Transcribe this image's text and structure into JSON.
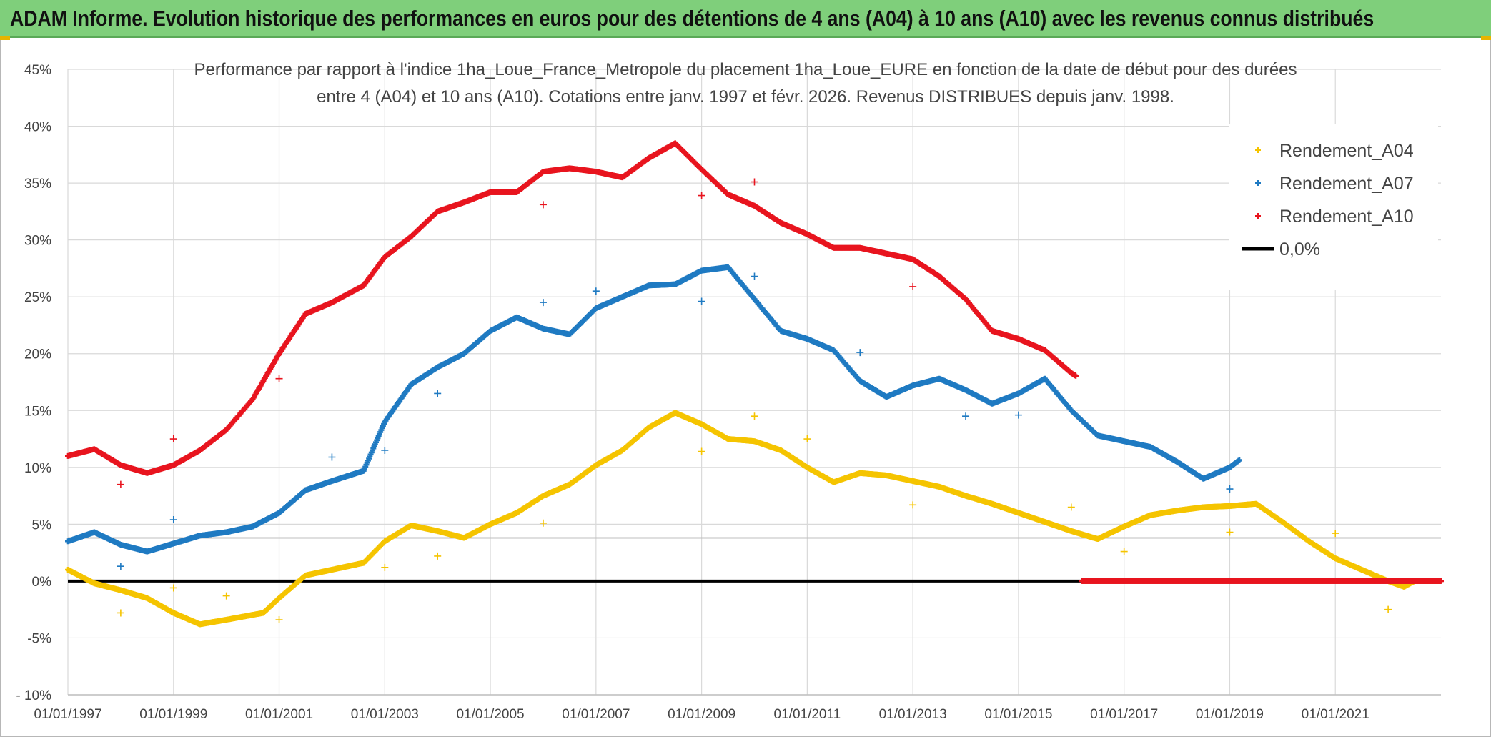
{
  "header": {
    "title": "ADAM Informe. Evolution historique des performances en euros pour des détentions de 4 ans (A04) à 10 ans (A10) avec les revenus connus distribués"
  },
  "chart_data": {
    "type": "scatter",
    "title_lines": [
      "Performance par rapport à l'indice 1ha_Loue_France_Metropole  du placement 1ha_Loue_EURE en fonction de la date de début pour des durées",
      "entre 4 (A04) et 10 ans (A10). Cotations entre janv. 1997 et févr. 2026. Revenus DISTRIBUES depuis janv. 1998."
    ],
    "xlabel": "",
    "ylabel": "",
    "xlim": [
      1997.0,
      2023.0
    ],
    "ylim": [
      -10,
      45
    ],
    "x_ticks": [
      1997,
      1999,
      2001,
      2003,
      2005,
      2007,
      2009,
      2011,
      2013,
      2015,
      2017,
      2019,
      2021
    ],
    "x_tick_labels": [
      "01/01/1997",
      "01/01/1999",
      "01/01/2001",
      "01/01/2003",
      "01/01/2005",
      "01/01/2007",
      "01/01/2009",
      "01/01/2011",
      "01/01/2013",
      "01/01/2015",
      "01/01/2017",
      "01/01/2019",
      "01/01/2021"
    ],
    "y_ticks": [
      -10,
      -5,
      0,
      5,
      10,
      15,
      20,
      25,
      30,
      35,
      40,
      45
    ],
    "y_tick_labels": [
      "- 10%",
      "-5%",
      "0%",
      "5%",
      "10%",
      "15%",
      "20%",
      "25%",
      "30%",
      "35%",
      "40%",
      "45%"
    ],
    "grid": true,
    "reference_line": {
      "y": 3.8
    },
    "legend_position": "top-right",
    "series": [
      {
        "name": "Rendement_A04",
        "color": "#f5c400",
        "marker": "plus",
        "points": [
          [
            1997.0,
            1.0
          ],
          [
            1997.5,
            -0.2
          ],
          [
            1998.0,
            -0.8
          ],
          [
            1998.5,
            -1.5
          ],
          [
            1999.0,
            -2.8
          ],
          [
            1999.5,
            -3.8
          ],
          [
            2000.0,
            -3.4
          ],
          [
            2000.7,
            -2.8
          ],
          [
            2001.0,
            -1.5
          ],
          [
            2001.5,
            0.5
          ],
          [
            2002.0,
            1.0
          ],
          [
            2002.6,
            1.6
          ],
          [
            2003.0,
            3.5
          ],
          [
            2003.5,
            4.9
          ],
          [
            2004.0,
            4.4
          ],
          [
            2004.5,
            3.8
          ],
          [
            2005.0,
            5.0
          ],
          [
            2005.5,
            6.0
          ],
          [
            2006.0,
            7.5
          ],
          [
            2006.5,
            8.5
          ],
          [
            2007.0,
            10.2
          ],
          [
            2007.5,
            11.5
          ],
          [
            2008.0,
            13.5
          ],
          [
            2008.5,
            14.8
          ],
          [
            2009.0,
            13.8
          ],
          [
            2009.5,
            12.5
          ],
          [
            2010.0,
            12.3
          ],
          [
            2010.5,
            11.5
          ],
          [
            2011.0,
            10.0
          ],
          [
            2011.5,
            8.7
          ],
          [
            2012.0,
            9.5
          ],
          [
            2012.5,
            9.3
          ],
          [
            2013.0,
            8.8
          ],
          [
            2013.5,
            8.3
          ],
          [
            2014.0,
            7.5
          ],
          [
            2014.5,
            6.8
          ],
          [
            2015.0,
            6.0
          ],
          [
            2015.5,
            5.2
          ],
          [
            2016.0,
            4.4
          ],
          [
            2016.5,
            3.7
          ],
          [
            2017.0,
            4.8
          ],
          [
            2017.5,
            5.8
          ],
          [
            2018.0,
            6.2
          ],
          [
            2018.5,
            6.5
          ],
          [
            2019.0,
            6.6
          ],
          [
            2019.5,
            6.8
          ],
          [
            2020.0,
            5.2
          ],
          [
            2020.5,
            3.5
          ],
          [
            2021.0,
            2.0
          ],
          [
            2021.5,
            1.0
          ],
          [
            2022.0,
            0.0
          ],
          [
            2022.3,
            -0.5
          ],
          [
            2022.5,
            0.0
          ],
          [
            2023.0,
            0.0
          ]
        ],
        "outliers": [
          [
            1998.0,
            -2.8
          ],
          [
            1999.0,
            -0.6
          ],
          [
            2000.0,
            -1.3
          ],
          [
            2001.0,
            -3.4
          ],
          [
            2003.0,
            1.2
          ],
          [
            2004.0,
            2.2
          ],
          [
            2006.0,
            5.1
          ],
          [
            2009.0,
            11.4
          ],
          [
            2010.0,
            14.5
          ],
          [
            2011.0,
            12.5
          ],
          [
            2013.0,
            6.7
          ],
          [
            2016.0,
            6.5
          ],
          [
            2017.0,
            2.6
          ],
          [
            2019.0,
            4.3
          ],
          [
            2021.0,
            4.2
          ],
          [
            2022.0,
            -2.5
          ]
        ]
      },
      {
        "name": "Rendement_A07",
        "color": "#1f7ac2",
        "marker": "plus",
        "points": [
          [
            1997.0,
            3.5
          ],
          [
            1997.5,
            4.3
          ],
          [
            1998.0,
            3.2
          ],
          [
            1998.5,
            2.6
          ],
          [
            1999.0,
            3.3
          ],
          [
            1999.5,
            4.0
          ],
          [
            2000.0,
            4.3
          ],
          [
            2000.5,
            4.8
          ],
          [
            2001.0,
            6.0
          ],
          [
            2001.5,
            8.0
          ],
          [
            2002.0,
            8.8
          ],
          [
            2002.6,
            9.7
          ],
          [
            2003.0,
            14.0
          ],
          [
            2003.5,
            17.3
          ],
          [
            2004.0,
            18.8
          ],
          [
            2004.5,
            20.0
          ],
          [
            2005.0,
            22.0
          ],
          [
            2005.5,
            23.2
          ],
          [
            2006.0,
            22.2
          ],
          [
            2006.5,
            21.7
          ],
          [
            2007.0,
            24.0
          ],
          [
            2007.5,
            25.0
          ],
          [
            2008.0,
            26.0
          ],
          [
            2008.5,
            26.1
          ],
          [
            2009.0,
            27.3
          ],
          [
            2009.5,
            27.6
          ],
          [
            2010.0,
            24.8
          ],
          [
            2010.5,
            22.0
          ],
          [
            2011.0,
            21.3
          ],
          [
            2011.5,
            20.3
          ],
          [
            2012.0,
            17.6
          ],
          [
            2012.5,
            16.2
          ],
          [
            2013.0,
            17.2
          ],
          [
            2013.5,
            17.8
          ],
          [
            2014.0,
            16.8
          ],
          [
            2014.5,
            15.6
          ],
          [
            2015.0,
            16.5
          ],
          [
            2015.5,
            17.8
          ],
          [
            2016.0,
            15.0
          ],
          [
            2016.5,
            12.8
          ],
          [
            2017.0,
            12.3
          ],
          [
            2017.5,
            11.8
          ],
          [
            2018.0,
            10.5
          ],
          [
            2018.5,
            9.0
          ],
          [
            2019.0,
            10.0
          ],
          [
            2019.2,
            10.7
          ]
        ],
        "outliers": [
          [
            1998.0,
            1.3
          ],
          [
            1999.0,
            5.4
          ],
          [
            2002.0,
            10.9
          ],
          [
            2003.0,
            11.5
          ],
          [
            2004.0,
            16.5
          ],
          [
            2006.0,
            24.5
          ],
          [
            2007.0,
            25.5
          ],
          [
            2009.0,
            24.6
          ],
          [
            2010.0,
            26.8
          ],
          [
            2012.0,
            20.1
          ],
          [
            2014.0,
            14.5
          ],
          [
            2015.0,
            14.6
          ],
          [
            2019.0,
            8.1
          ]
        ]
      },
      {
        "name": "Rendement_A10",
        "color": "#e8141e",
        "marker": "plus",
        "points": [
          [
            1997.0,
            11.0
          ],
          [
            1997.5,
            11.6
          ],
          [
            1998.0,
            10.2
          ],
          [
            1998.5,
            9.5
          ],
          [
            1999.0,
            10.2
          ],
          [
            1999.5,
            11.5
          ],
          [
            2000.0,
            13.3
          ],
          [
            2000.5,
            16.0
          ],
          [
            2001.0,
            20.0
          ],
          [
            2001.5,
            23.5
          ],
          [
            2002.0,
            24.5
          ],
          [
            2002.6,
            26.0
          ],
          [
            2003.0,
            28.5
          ],
          [
            2003.5,
            30.3
          ],
          [
            2004.0,
            32.5
          ],
          [
            2004.5,
            33.3
          ],
          [
            2005.0,
            34.2
          ],
          [
            2005.5,
            34.2
          ],
          [
            2006.0,
            36.0
          ],
          [
            2006.5,
            36.3
          ],
          [
            2007.0,
            36.0
          ],
          [
            2007.5,
            35.5
          ],
          [
            2008.0,
            37.2
          ],
          [
            2008.5,
            38.5
          ],
          [
            2009.0,
            36.2
          ],
          [
            2009.5,
            34.0
          ],
          [
            2010.0,
            33.0
          ],
          [
            2010.5,
            31.5
          ],
          [
            2011.0,
            30.5
          ],
          [
            2011.5,
            29.3
          ],
          [
            2012.0,
            29.3
          ],
          [
            2012.5,
            28.8
          ],
          [
            2013.0,
            28.3
          ],
          [
            2013.5,
            26.8
          ],
          [
            2014.0,
            24.8
          ],
          [
            2014.5,
            22.0
          ],
          [
            2015.0,
            21.3
          ],
          [
            2015.5,
            20.3
          ],
          [
            2016.0,
            18.3
          ],
          [
            2016.1,
            18.0
          ]
        ],
        "tail": [
          [
            2016.2,
            0.0
          ],
          [
            2023.0,
            0.0
          ]
        ],
        "outliers": [
          [
            1998.0,
            8.5
          ],
          [
            1999.0,
            12.5
          ],
          [
            2001.0,
            17.8
          ],
          [
            2006.0,
            33.1
          ],
          [
            2009.0,
            33.9
          ],
          [
            2010.0,
            35.1
          ],
          [
            2013.0,
            25.9
          ]
        ]
      }
    ],
    "legend_zero_label": "0,0%",
    "zero_line_color": "#000000"
  }
}
